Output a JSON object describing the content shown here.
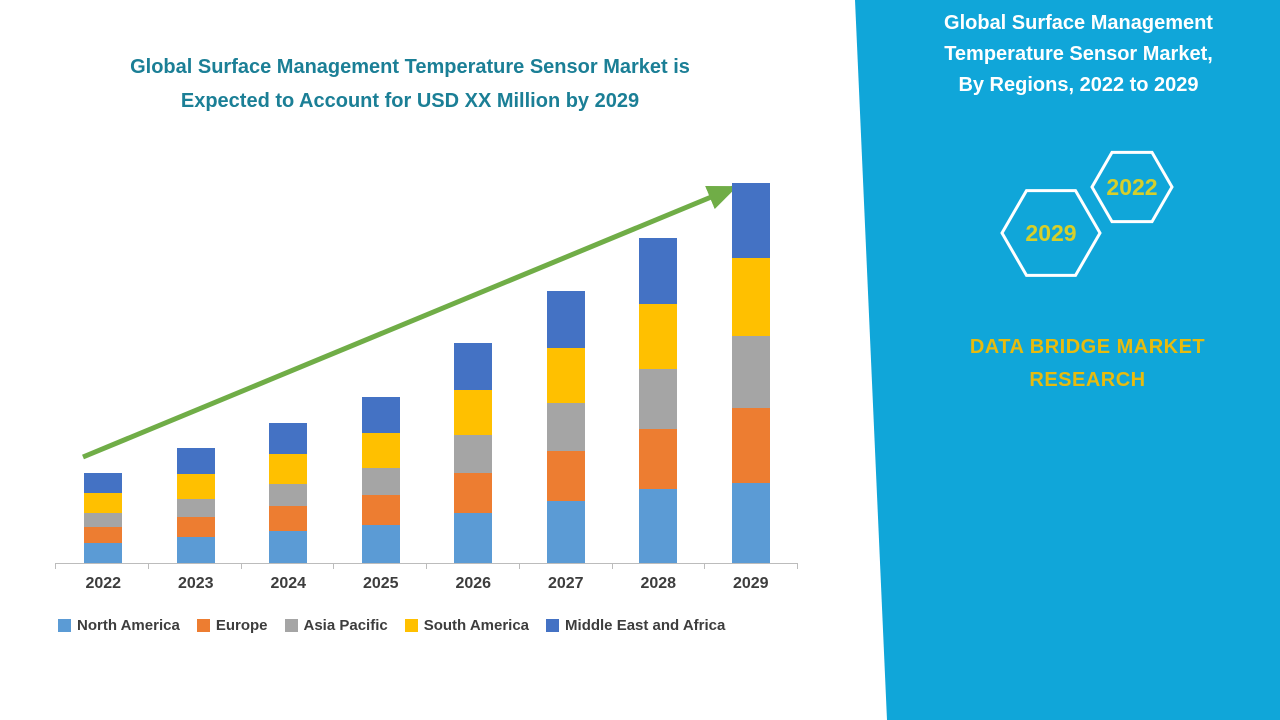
{
  "chart": {
    "title_line1": "Global Surface Management Temperature Sensor Market is",
    "title_line2": "Expected to Account for USD XX Million by 2029",
    "title_color": "#1b7f96"
  },
  "chart_data": {
    "type": "bar",
    "stacked": true,
    "title": "Global Surface Management Temperature Sensor Market is Expected to Account for USD XX Million by 2029",
    "xlabel": "",
    "ylabel": "USD Million (values shown as XX, axis unlabeled)",
    "ylim": [
      0,
      400
    ],
    "grid": false,
    "legend_position": "bottom",
    "categories": [
      "2022",
      "2023",
      "2024",
      "2025",
      "2026",
      "2027",
      "2028",
      "2029"
    ],
    "series": [
      {
        "name": "North America",
        "color": "#5b9bd5",
        "values": [
          20,
          26,
          32,
          38,
          50,
          62,
          74,
          80
        ]
      },
      {
        "name": "Europe",
        "color": "#ed7d31",
        "values": [
          16,
          20,
          25,
          30,
          40,
          50,
          60,
          75
        ]
      },
      {
        "name": "Asia Pacific",
        "color": "#a5a5a5",
        "values": [
          14,
          18,
          22,
          27,
          38,
          48,
          60,
          72
        ]
      },
      {
        "name": "South America",
        "color": "#ffc000",
        "values": [
          20,
          25,
          30,
          35,
          45,
          55,
          65,
          78
        ]
      },
      {
        "name": "Middle East and Africa",
        "color": "#4472c4",
        "values": [
          20,
          26,
          31,
          36,
          47,
          57,
          66,
          75
        ]
      }
    ],
    "annotations": [
      "upward trend arrow across bars from 2022 to 2029"
    ],
    "trend_arrow_color": "#70ad47"
  },
  "right_panel": {
    "bg_color": "#10a6d9",
    "title_lines": [
      "Global Surface Management",
      "Temperature Sensor Market,",
      "By Regions, 2022 to 2029"
    ],
    "hexagon_years": [
      "2022",
      "2029"
    ],
    "year_color": "#d6cf2a",
    "brand_lines": [
      "DATA BRIDGE MARKET",
      "RESEARCH"
    ],
    "brand_color": "#e7bb0e"
  }
}
